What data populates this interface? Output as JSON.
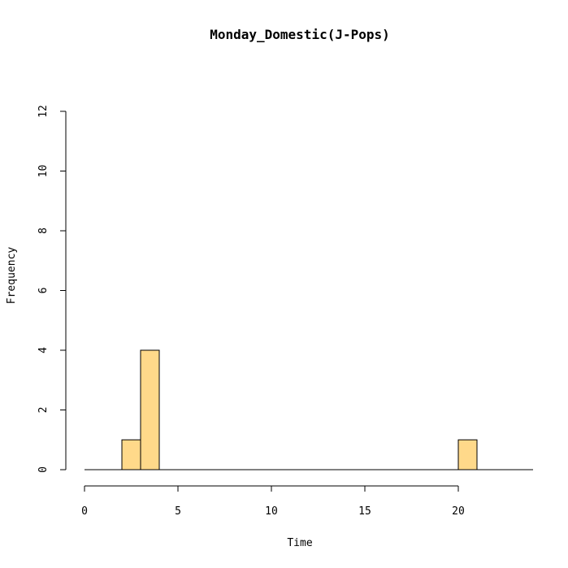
{
  "chart_data": {
    "type": "histogram",
    "title": "Monday_Domestic(J-Pops)",
    "xlabel": "Time",
    "ylabel": "Frequency",
    "xlim": [
      0,
      24
    ],
    "ylim": [
      0,
      12
    ],
    "x_ticks": [
      0,
      5,
      10,
      15,
      20
    ],
    "y_ticks": [
      0,
      2,
      4,
      6,
      8,
      10,
      12
    ],
    "bins": [
      {
        "start": 0,
        "end": 1,
        "count": 0
      },
      {
        "start": 1,
        "end": 2,
        "count": 0
      },
      {
        "start": 2,
        "end": 3,
        "count": 1
      },
      {
        "start": 3,
        "end": 4,
        "count": 4
      },
      {
        "start": 4,
        "end": 5,
        "count": 0
      },
      {
        "start": 5,
        "end": 6,
        "count": 0
      },
      {
        "start": 6,
        "end": 7,
        "count": 0
      },
      {
        "start": 7,
        "end": 8,
        "count": 0
      },
      {
        "start": 8,
        "end": 9,
        "count": 0
      },
      {
        "start": 9,
        "end": 10,
        "count": 0
      },
      {
        "start": 10,
        "end": 11,
        "count": 0
      },
      {
        "start": 11,
        "end": 12,
        "count": 0
      },
      {
        "start": 12,
        "end": 13,
        "count": 0
      },
      {
        "start": 13,
        "end": 14,
        "count": 0
      },
      {
        "start": 14,
        "end": 15,
        "count": 0
      },
      {
        "start": 15,
        "end": 16,
        "count": 0
      },
      {
        "start": 16,
        "end": 17,
        "count": 0
      },
      {
        "start": 17,
        "end": 18,
        "count": 0
      },
      {
        "start": 18,
        "end": 19,
        "count": 0
      },
      {
        "start": 19,
        "end": 20,
        "count": 0
      },
      {
        "start": 20,
        "end": 21,
        "count": 1
      },
      {
        "start": 21,
        "end": 22,
        "count": 0
      },
      {
        "start": 22,
        "end": 23,
        "count": 0
      },
      {
        "start": 23,
        "end": 24,
        "count": 0
      }
    ],
    "bar_color": "#FFD98A",
    "grid": false
  }
}
